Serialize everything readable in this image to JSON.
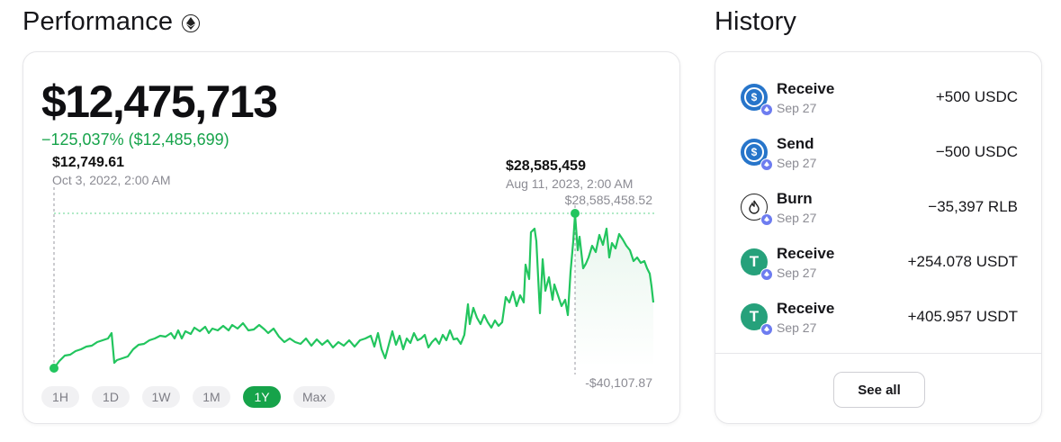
{
  "performance": {
    "title": "Performance",
    "balance": "$12,475,713",
    "change": "−125,037% ($12,485,699)",
    "start_point": {
      "value": "$12,749.61",
      "date": "Oct 3, 2022, 2:00 AM"
    },
    "peak_point": {
      "value": "$28,585,459",
      "date": "Aug 11, 2023, 2:00 AM"
    },
    "max_label": "$28,585,458.52",
    "min_label": "-$40,107.87",
    "ranges": [
      "1H",
      "1D",
      "1W",
      "1M",
      "1Y",
      "Max"
    ],
    "active_range": "1Y",
    "accent_color": "#16a34a"
  },
  "history": {
    "title": "History",
    "items": [
      {
        "kind": "Receive",
        "date": "Sep 27",
        "amount": "+500 USDC",
        "icon": "usdc-icon"
      },
      {
        "kind": "Send",
        "date": "Sep 27",
        "amount": "−500 USDC",
        "icon": "usdc-icon"
      },
      {
        "kind": "Burn",
        "date": "Sep 27",
        "amount": "−35,397 RLB",
        "icon": "rlb-icon"
      },
      {
        "kind": "Receive",
        "date": "Sep 27",
        "amount": "+254.078 USDT",
        "icon": "usdt-icon"
      },
      {
        "kind": "Receive",
        "date": "Sep 27",
        "amount": "+405.957 USDT",
        "icon": "usdt-icon"
      }
    ],
    "see_all_label": "See all"
  }
}
